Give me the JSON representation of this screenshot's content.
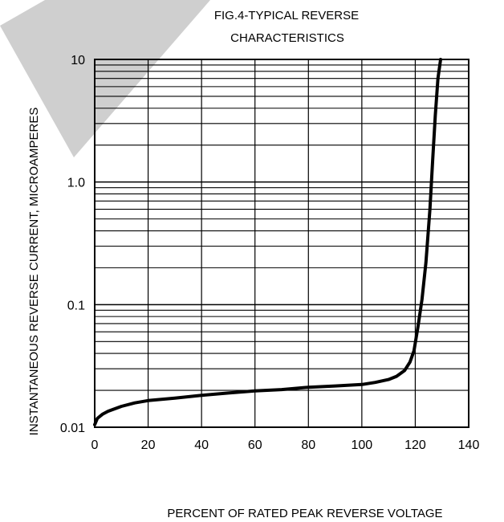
{
  "chart_data": {
    "type": "line",
    "title_lines": [
      "FIG.4-TYPICAL REVERSE",
      "CHARACTERISTICS"
    ],
    "xlabel": "PERCENT OF RATED PEAK REVERSE VOLTAGE",
    "ylabel": "INSTANTANEOUS  REVERSE  CURRENT, MICROAMPERES",
    "x_ticks": [
      0,
      20,
      40,
      60,
      80,
      100,
      120,
      140
    ],
    "x_tick_labels": [
      "0",
      "20",
      "40",
      "60",
      "80",
      "100",
      "120",
      "140"
    ],
    "y_ticks": [
      0.01,
      0.1,
      1.0,
      10
    ],
    "y_tick_labels": [
      "0.01",
      "0.1",
      "1.0",
      "10"
    ],
    "xlim": [
      0,
      140
    ],
    "ylim": [
      0.01,
      10
    ],
    "y_scale": "log",
    "grid": true,
    "series": [
      {
        "x": [
          0,
          1,
          3,
          5,
          10,
          15,
          20,
          30,
          40,
          50,
          60,
          70,
          80,
          90,
          100,
          105,
          110,
          113,
          116,
          118,
          119.5,
          121,
          122.5,
          124,
          125.5,
          126.5,
          127.5,
          128.5,
          129.5
        ],
        "y": [
          0.0105,
          0.0118,
          0.0128,
          0.0135,
          0.0148,
          0.0158,
          0.0165,
          0.0173,
          0.0182,
          0.019,
          0.0198,
          0.0203,
          0.0212,
          0.0217,
          0.0223,
          0.0232,
          0.0245,
          0.026,
          0.029,
          0.034,
          0.042,
          0.066,
          0.11,
          0.22,
          0.6,
          1.5,
          3.5,
          7.0,
          10
        ]
      }
    ]
  }
}
